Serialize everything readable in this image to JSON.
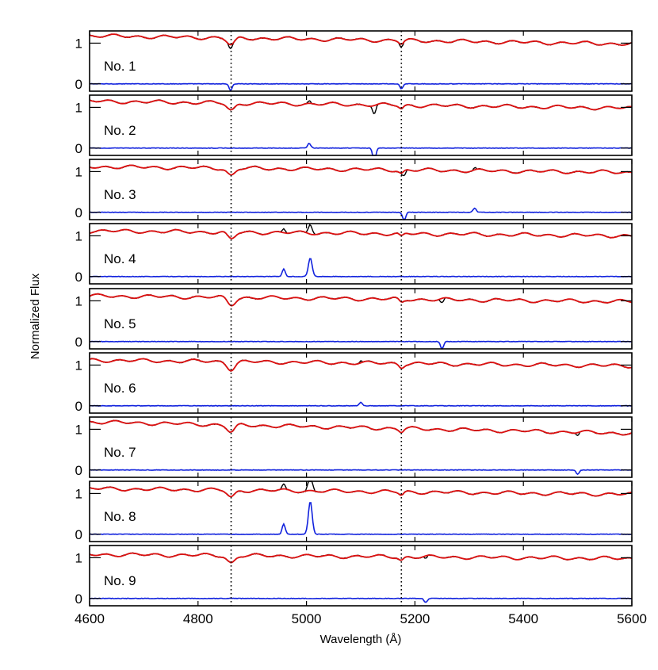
{
  "chart_data": {
    "type": "line",
    "xlabel": "Wavelength (Å)",
    "ylabel": "Normalized Flux",
    "xlim": [
      4600,
      5600
    ],
    "xticks": [
      "4600",
      "4800",
      "5000",
      "5200",
      "5400",
      "5600"
    ],
    "yticks": [
      "0",
      "1"
    ],
    "panel_ylim": [
      -0.18,
      1.3
    ],
    "reference_lines_x": [
      4861,
      5175
    ],
    "colors": {
      "observed": "#000000",
      "model": "#dd1111",
      "residual": "#1122dd",
      "reference": "#000000"
    },
    "panels": [
      {
        "label": "No. 1",
        "start": 1.18,
        "end": 0.98,
        "features": [
          {
            "x": 4860,
            "depth": -0.16
          },
          {
            "x": 5175,
            "depth": -0.12
          }
        ]
      },
      {
        "label": "No. 2",
        "start": 1.15,
        "end": 0.98,
        "features": [
          {
            "x": 5125,
            "depth": -0.35
          },
          {
            "x": 5005,
            "depth": 0.12
          }
        ]
      },
      {
        "label": "No. 3",
        "start": 1.12,
        "end": 0.98,
        "features": [
          {
            "x": 5180,
            "depth": -0.2
          },
          {
            "x": 5310,
            "depth": 0.1
          }
        ]
      },
      {
        "label": "No. 4",
        "start": 1.12,
        "end": 1.0,
        "features": [
          {
            "x": 4958,
            "depth": 0.18
          },
          {
            "x": 5007,
            "depth": 0.45
          }
        ]
      },
      {
        "label": "No. 5",
        "start": 1.12,
        "end": 0.98,
        "features": [
          {
            "x": 5250,
            "depth": -0.18
          }
        ]
      },
      {
        "label": "No. 6",
        "start": 1.12,
        "end": 0.98,
        "features": [
          {
            "x": 5100,
            "depth": 0.08
          }
        ]
      },
      {
        "label": "No. 7",
        "start": 1.18,
        "end": 0.9,
        "features": [
          {
            "x": 5500,
            "depth": -0.1
          }
        ]
      },
      {
        "label": "No. 8",
        "start": 1.12,
        "end": 0.98,
        "features": [
          {
            "x": 4958,
            "depth": 0.25
          },
          {
            "x": 5007,
            "depth": 0.8
          }
        ]
      },
      {
        "label": "No. 9",
        "start": 1.08,
        "end": 0.98,
        "features": [
          {
            "x": 5220,
            "depth": -0.1
          }
        ]
      }
    ]
  }
}
